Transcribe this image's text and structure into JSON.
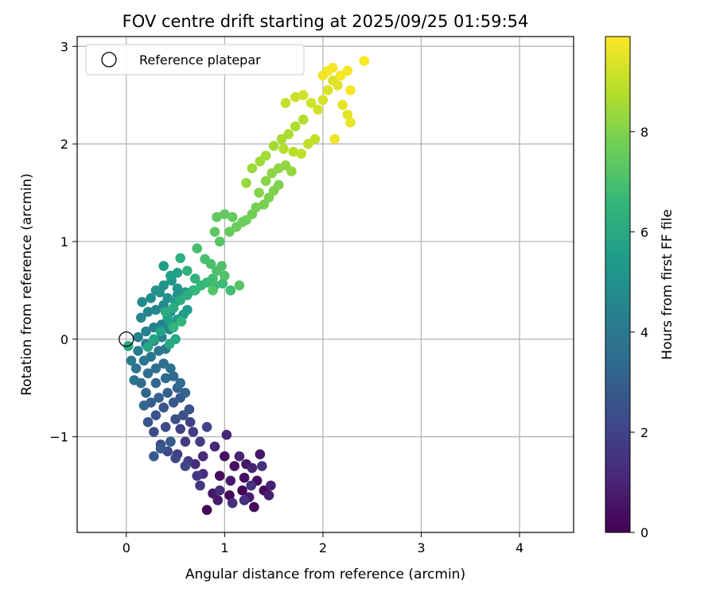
{
  "chart_data": {
    "type": "scatter",
    "title": "FOV centre drift starting at 2025/09/25 01:59:54",
    "xlabel": "Angular distance from reference (arcmin)",
    "ylabel": "Rotation from reference (arcmin)",
    "xlim": [
      -0.5,
      4.55
    ],
    "ylim": [
      -1.98,
      3.1
    ],
    "xticks": [
      0,
      1,
      2,
      3,
      4
    ],
    "yticks": [
      -1,
      0,
      1,
      2,
      3
    ],
    "xtick_labels": [
      "0",
      "1",
      "2",
      "3",
      "4"
    ],
    "ytick_labels": [
      "−1",
      "0",
      "1",
      "2",
      "3"
    ],
    "grid": true,
    "legend": {
      "location": "upper-left",
      "entry": "Reference platepar"
    },
    "reference_point": {
      "x": 0,
      "y": 0
    },
    "colorbar": {
      "label": "Hours from first FF file",
      "range": [
        0,
        9.9
      ],
      "ticks": [
        0,
        2,
        4,
        6,
        8
      ],
      "tick_labels": [
        "0",
        "2",
        "4",
        "6",
        "8"
      ],
      "colormap": "viridis"
    },
    "colormap_stops": [
      "#440154",
      "#482878",
      "#3e4989",
      "#31688e",
      "#26828e",
      "#1f9e89",
      "#35b779",
      "#6ece58",
      "#b5de2b",
      "#fde725"
    ],
    "points": [
      [
        0.82,
        -1.75,
        0.05
      ],
      [
        1.05,
        -1.6,
        0.1
      ],
      [
        1.18,
        -1.55,
        0.15
      ],
      [
        1.3,
        -1.72,
        0.2
      ],
      [
        1.4,
        -1.55,
        0.25
      ],
      [
        0.95,
        -1.4,
        0.3
      ],
      [
        1.2,
        -1.42,
        0.35
      ],
      [
        1.33,
        -1.45,
        0.4
      ],
      [
        1.0,
        -1.2,
        0.45
      ],
      [
        1.1,
        -1.3,
        0.5
      ],
      [
        1.22,
        -1.28,
        0.55
      ],
      [
        1.36,
        -1.18,
        0.6
      ],
      [
        0.88,
        -1.58,
        0.65
      ],
      [
        0.93,
        -1.65,
        0.7
      ],
      [
        1.06,
        -1.45,
        0.75
      ],
      [
        1.25,
        -1.62,
        0.8
      ],
      [
        1.45,
        -1.6,
        0.85
      ],
      [
        1.47,
        -1.5,
        0.9
      ],
      [
        1.28,
        -1.32,
        0.95
      ],
      [
        1.15,
        -1.2,
        1.0
      ],
      [
        1.02,
        -0.98,
        1.05
      ],
      [
        0.9,
        -1.1,
        1.1
      ],
      [
        0.78,
        -1.2,
        1.15
      ],
      [
        0.7,
        -1.28,
        1.2
      ],
      [
        0.78,
        -1.38,
        1.25
      ],
      [
        0.95,
        -1.55,
        1.3
      ],
      [
        1.08,
        -1.68,
        1.35
      ],
      [
        1.2,
        -1.65,
        1.4
      ],
      [
        1.27,
        -1.5,
        1.45
      ],
      [
        1.38,
        -1.3,
        1.5
      ],
      [
        0.75,
        -1.5,
        1.55
      ],
      [
        0.72,
        -1.4,
        1.6
      ],
      [
        0.63,
        -1.25,
        1.65
      ],
      [
        0.6,
        -1.05,
        1.7
      ],
      [
        0.68,
        -0.95,
        1.75
      ],
      [
        0.75,
        -1.05,
        1.8
      ],
      [
        0.52,
        -1.18,
        1.85
      ],
      [
        0.45,
        -1.05,
        1.9
      ],
      [
        0.55,
        -0.92,
        1.95
      ],
      [
        0.65,
        -0.85,
        2.0
      ],
      [
        0.82,
        -0.9,
        2.05
      ],
      [
        0.6,
        -1.3,
        2.1
      ],
      [
        0.5,
        -1.22,
        2.15
      ],
      [
        0.42,
        -1.15,
        2.2
      ],
      [
        0.35,
        -1.08,
        2.25
      ],
      [
        0.28,
        -0.95,
        2.3
      ],
      [
        0.4,
        -0.9,
        2.35
      ],
      [
        0.5,
        -0.82,
        2.4
      ],
      [
        0.58,
        -0.78,
        2.45
      ],
      [
        0.64,
        -0.72,
        2.5
      ],
      [
        0.22,
        -0.85,
        2.55
      ],
      [
        0.3,
        -0.78,
        2.6
      ],
      [
        0.38,
        -0.7,
        2.65
      ],
      [
        0.48,
        -0.65,
        2.7
      ],
      [
        0.55,
        -0.6,
        2.75
      ],
      [
        0.28,
        -1.2,
        2.8
      ],
      [
        0.35,
        -1.12,
        2.85
      ],
      [
        0.45,
        -1.05,
        2.9
      ],
      [
        0.25,
        -0.65,
        2.95
      ],
      [
        0.33,
        -0.6,
        3.0
      ],
      [
        0.42,
        -0.55,
        3.05
      ],
      [
        0.52,
        -0.5,
        3.1
      ],
      [
        0.6,
        -0.55,
        3.15
      ],
      [
        0.2,
        -0.55,
        3.2
      ],
      [
        0.18,
        -0.68,
        3.25
      ],
      [
        0.3,
        -0.45,
        3.3
      ],
      [
        0.4,
        -0.4,
        3.35
      ],
      [
        0.48,
        -0.38,
        3.4
      ],
      [
        0.55,
        -0.45,
        3.45
      ],
      [
        0.15,
        -0.45,
        3.5
      ],
      [
        0.22,
        -0.35,
        3.55
      ],
      [
        0.3,
        -0.3,
        3.6
      ],
      [
        0.38,
        -0.25,
        3.65
      ],
      [
        0.45,
        -0.3,
        3.7
      ],
      [
        0.1,
        -0.3,
        3.75
      ],
      [
        0.08,
        -0.42,
        3.8
      ],
      [
        0.18,
        -0.22,
        3.85
      ],
      [
        0.25,
        -0.18,
        3.9
      ],
      [
        0.33,
        -0.12,
        3.95
      ],
      [
        0.4,
        -0.1,
        4.0
      ],
      [
        0.05,
        -0.22,
        4.05
      ],
      [
        0.12,
        -0.12,
        4.1
      ],
      [
        0.2,
        -0.05,
        4.15
      ],
      [
        0.28,
        -0.02,
        4.2
      ],
      [
        0.36,
        0.02,
        4.25
      ],
      [
        0.12,
        0.02,
        4.3
      ],
      [
        0.2,
        0.08,
        4.35
      ],
      [
        0.28,
        0.12,
        4.4
      ],
      [
        0.36,
        0.15,
        4.45
      ],
      [
        0.44,
        0.1,
        4.5
      ],
      [
        0.15,
        0.22,
        4.55
      ],
      [
        0.22,
        0.28,
        4.6
      ],
      [
        0.3,
        0.3,
        4.65
      ],
      [
        0.38,
        0.35,
        4.7
      ],
      [
        0.45,
        0.28,
        4.75
      ],
      [
        0.16,
        0.38,
        4.8
      ],
      [
        0.25,
        0.42,
        4.85
      ],
      [
        0.34,
        0.48,
        4.9
      ],
      [
        0.42,
        0.42,
        4.95
      ],
      [
        0.52,
        0.45,
        5.0
      ],
      [
        0.3,
        0.5,
        5.05
      ],
      [
        0.38,
        0.55,
        5.1
      ],
      [
        0.46,
        0.6,
        5.15
      ],
      [
        0.52,
        0.52,
        5.2
      ],
      [
        0.6,
        0.48,
        5.25
      ],
      [
        0.45,
        0.15,
        5.3
      ],
      [
        0.52,
        0.2,
        5.35
      ],
      [
        0.58,
        0.25,
        5.4
      ],
      [
        0.62,
        0.3,
        5.45
      ],
      [
        0.5,
        0.38,
        5.5
      ],
      [
        0.38,
        0.75,
        5.55
      ],
      [
        0.45,
        0.65,
        5.6
      ],
      [
        0.52,
        0.68,
        5.65
      ],
      [
        0.42,
        0.22,
        5.7
      ],
      [
        0.35,
        0.08,
        5.75
      ],
      [
        0.28,
        0.0,
        5.8
      ],
      [
        0.22,
        -0.08,
        5.85
      ],
      [
        0.02,
        -0.07,
        5.9
      ],
      [
        0.5,
        0.0,
        5.95
      ],
      [
        0.44,
        -0.05,
        6.0
      ],
      [
        0.4,
        0.28,
        6.05
      ],
      [
        0.48,
        0.32,
        6.1
      ],
      [
        0.55,
        0.4,
        6.15
      ],
      [
        0.62,
        0.45,
        6.2
      ],
      [
        0.68,
        0.5,
        6.25
      ],
      [
        0.55,
        0.83,
        6.3
      ],
      [
        0.62,
        0.7,
        6.35
      ],
      [
        0.7,
        0.62,
        6.4
      ],
      [
        0.48,
        0.12,
        6.45
      ],
      [
        0.56,
        0.18,
        6.5
      ],
      [
        0.7,
        0.5,
        6.55
      ],
      [
        0.76,
        0.55,
        6.6
      ],
      [
        0.82,
        0.58,
        6.65
      ],
      [
        0.9,
        0.55,
        6.7
      ],
      [
        0.98,
        0.57,
        6.75
      ],
      [
        1.06,
        0.5,
        6.8
      ],
      [
        0.88,
        0.62,
        6.85
      ],
      [
        0.72,
        0.93,
        6.9
      ],
      [
        0.8,
        0.82,
        6.95
      ],
      [
        0.86,
        0.77,
        7.0
      ],
      [
        0.92,
        0.7,
        7.05
      ],
      [
        0.97,
        0.75,
        7.1
      ],
      [
        1.0,
        0.65,
        7.15
      ],
      [
        0.88,
        0.5,
        7.2
      ],
      [
        1.15,
        0.55,
        7.25
      ],
      [
        0.95,
        1.0,
        7.3
      ],
      [
        0.9,
        1.1,
        7.35
      ],
      [
        0.92,
        1.25,
        7.4
      ],
      [
        1.0,
        1.28,
        7.45
      ],
      [
        1.08,
        1.25,
        7.5
      ],
      [
        1.05,
        1.1,
        7.55
      ],
      [
        1.12,
        1.15,
        7.6
      ],
      [
        1.18,
        1.2,
        7.65
      ],
      [
        1.22,
        1.22,
        7.7
      ],
      [
        1.28,
        1.28,
        7.75
      ],
      [
        1.32,
        1.35,
        7.8
      ],
      [
        1.4,
        1.38,
        7.85
      ],
      [
        1.45,
        1.45,
        7.9
      ],
      [
        1.5,
        1.52,
        7.95
      ],
      [
        1.55,
        1.58,
        8.0
      ],
      [
        1.35,
        1.5,
        8.05
      ],
      [
        1.42,
        1.62,
        8.1
      ],
      [
        1.48,
        1.7,
        8.15
      ],
      [
        1.55,
        1.75,
        8.2
      ],
      [
        1.62,
        1.78,
        8.25
      ],
      [
        1.68,
        1.72,
        8.3
      ],
      [
        1.22,
        1.6,
        8.35
      ],
      [
        1.28,
        1.75,
        8.4
      ],
      [
        1.36,
        1.82,
        8.45
      ],
      [
        1.42,
        1.88,
        8.5
      ],
      [
        1.5,
        1.98,
        8.55
      ],
      [
        1.58,
        2.05,
        8.6
      ],
      [
        1.65,
        2.1,
        8.65
      ],
      [
        1.72,
        2.18,
        8.7
      ],
      [
        1.8,
        2.25,
        8.75
      ],
      [
        1.6,
        1.95,
        8.8
      ],
      [
        1.7,
        1.92,
        8.85
      ],
      [
        1.78,
        1.9,
        8.9
      ],
      [
        1.85,
        2.0,
        8.95
      ],
      [
        1.92,
        2.05,
        9.0
      ],
      [
        1.62,
        2.42,
        9.05
      ],
      [
        1.72,
        2.48,
        9.1
      ],
      [
        1.8,
        2.5,
        9.15
      ],
      [
        1.88,
        2.42,
        9.2
      ],
      [
        1.95,
        2.35,
        9.25
      ],
      [
        2.0,
        2.45,
        9.3
      ],
      [
        2.05,
        2.55,
        9.35
      ],
      [
        2.1,
        2.65,
        9.4
      ],
      [
        2.15,
        2.6,
        9.45
      ],
      [
        2.2,
        2.4,
        9.5
      ],
      [
        2.25,
        2.3,
        9.55
      ],
      [
        2.28,
        2.22,
        9.6
      ],
      [
        2.12,
        2.05,
        9.65
      ],
      [
        2.0,
        2.7,
        9.7
      ],
      [
        2.05,
        2.75,
        9.72
      ],
      [
        2.1,
        2.78,
        9.75
      ],
      [
        2.18,
        2.7,
        9.78
      ],
      [
        2.25,
        2.75,
        9.8
      ],
      [
        2.28,
        2.55,
        9.82
      ],
      [
        2.42,
        2.85,
        9.85
      ]
    ]
  }
}
